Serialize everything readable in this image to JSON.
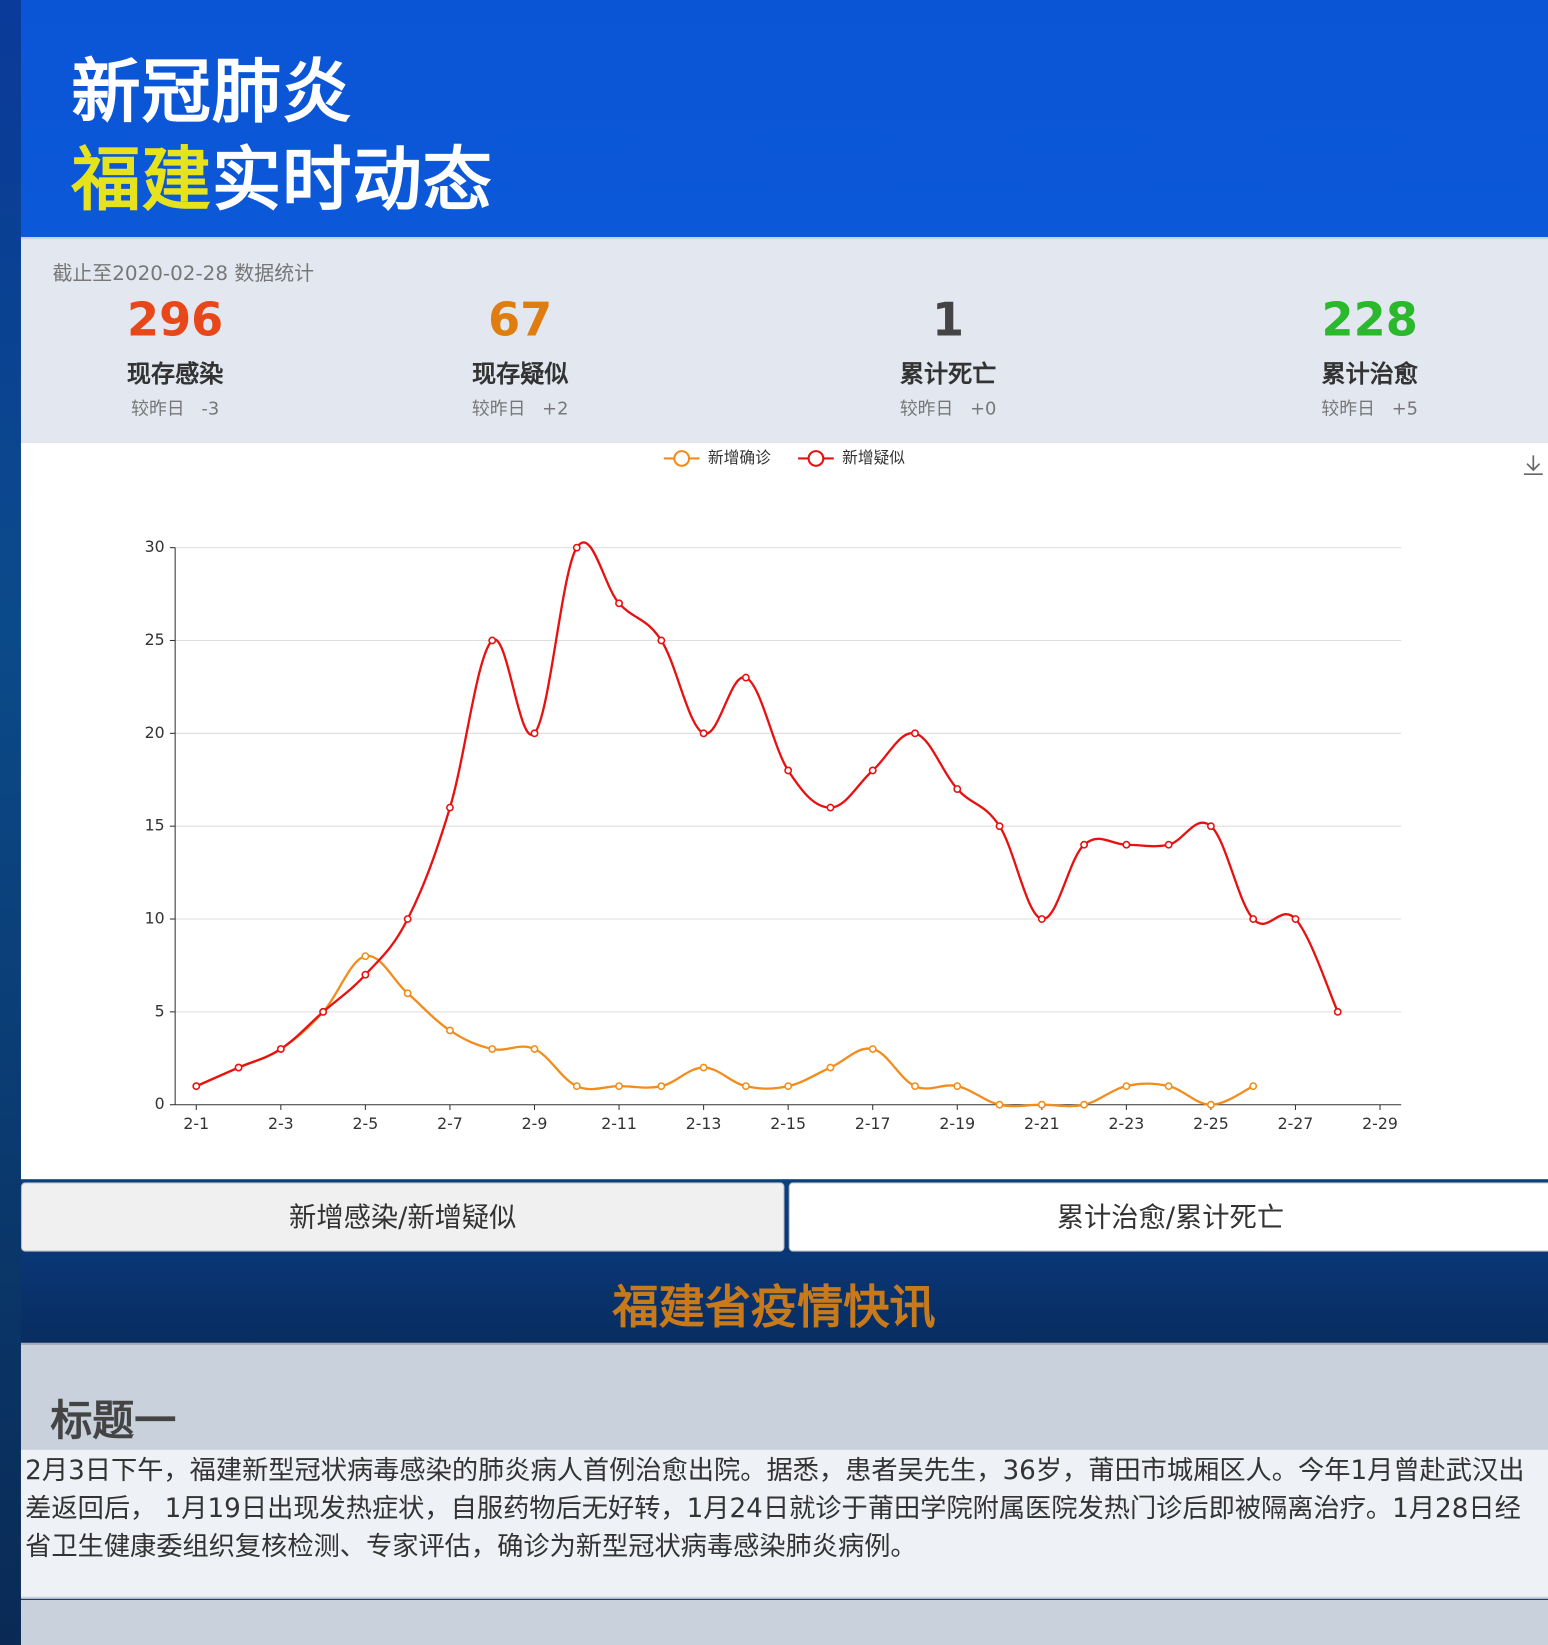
{
  "header": {
    "title_line1": "新冠肺炎",
    "title_highlight": "福建",
    "title_rest": "实时动态"
  },
  "stats": {
    "date_note": "截止至2020-02-28 数据统计",
    "items": [
      {
        "value": 296,
        "label": "现存感染",
        "change_label": "较昨日",
        "change": "-3",
        "color": "#e8471a"
      },
      {
        "value": 67,
        "label": "现存疑似",
        "change_label": "较昨日",
        "change": "+2",
        "color": "#e07d10"
      },
      {
        "value": 1,
        "label": "累计死亡",
        "change_label": "较昨日",
        "change": "+0",
        "color": "#444444"
      },
      {
        "value": 228,
        "label": "累计治愈",
        "change_label": "较昨日",
        "change": "+5",
        "color": "#2cb82c"
      }
    ]
  },
  "chart_data": {
    "type": "line",
    "smooth": true,
    "grid": true,
    "categories": [
      "2-1",
      null,
      "2-3",
      null,
      "2-5",
      null,
      "2-7",
      null,
      "2-9",
      null,
      "2-11",
      null,
      "2-13",
      null,
      "2-15",
      null,
      "2-17",
      null,
      "2-19",
      null,
      "2-21",
      null,
      "2-23",
      null,
      "2-25",
      null,
      "2-27",
      null,
      "2-29"
    ],
    "series": [
      {
        "name": "新增确诊",
        "color": "#f28c1a",
        "values": [
          1,
          2,
          3,
          5,
          8,
          6,
          4,
          3,
          3,
          1,
          1,
          1,
          2,
          1,
          1,
          2,
          3,
          1,
          1,
          0,
          0,
          0,
          1,
          1,
          0,
          1,
          null,
          null,
          null
        ]
      },
      {
        "name": "新增疑似",
        "color": "#e81010",
        "values": [
          1,
          2,
          3,
          5,
          7,
          10,
          16,
          25,
          20,
          30,
          27,
          25,
          20,
          23,
          18,
          16,
          18,
          20,
          17,
          15,
          10,
          14,
          14,
          14,
          15,
          10,
          10,
          5,
          null
        ]
      }
    ],
    "ylim": [
      0,
      30
    ],
    "yticks": [
      0,
      5,
      10,
      15,
      20,
      25,
      30
    ]
  },
  "tabs": [
    "新增感染/新增疑似",
    "累计治愈/累计死亡"
  ],
  "news": {
    "section_title": "福建省疫情快讯",
    "items": [
      {
        "heading": "标题一",
        "body": "2月3日下午，福建新型冠状病毒感染的肺炎病人首例治愈出院。据悉，患者吴先生，36岁，莆田市城厢区人。今年1月曾赴武汉出差返回后， 1月19日出现发热症状，自服药物后无好转，1月24日就诊于莆田学院附属医院发热门诊后即被隔离治疗。1月28日经省卫生健康委组织复核检测、专家评估，确诊为新型冠状病毒感染肺炎病例。"
      }
    ]
  }
}
